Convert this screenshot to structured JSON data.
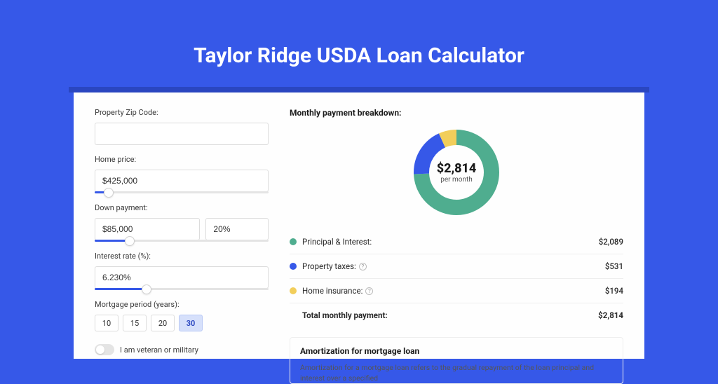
{
  "title": "Taylor Ridge USDA Loan Calculator",
  "colors": {
    "page_bg": "#3658e8",
    "card_bg": "#fefefe",
    "shadow_bar": "#2a46c0",
    "principal": "#4fad8f",
    "taxes": "#3658e8",
    "insurance": "#f2ce5b"
  },
  "form": {
    "zip": {
      "label": "Property Zip Code:",
      "value": ""
    },
    "home_price": {
      "label": "Home price:",
      "value": "$425,000",
      "slider_pct": 8
    },
    "down_payment": {
      "label": "Down payment:",
      "amount": "$85,000",
      "percent": "20%",
      "slider_pct": 20
    },
    "interest_rate": {
      "label": "Interest rate (%):",
      "value": "6.230%",
      "slider_pct": 30
    },
    "mortgage_period": {
      "label": "Mortgage period (years):",
      "options": [
        "10",
        "15",
        "20",
        "30"
      ],
      "selected": "30"
    },
    "veteran": {
      "label": "I am veteran or military",
      "on": false
    }
  },
  "breakdown": {
    "title": "Monthly payment breakdown:",
    "donut": {
      "amount": "$2,814",
      "sub": "per month",
      "segments": [
        {
          "key": "principal",
          "pct": 74.2
        },
        {
          "key": "taxes",
          "pct": 18.9
        },
        {
          "key": "insurance",
          "pct": 6.9
        }
      ],
      "stroke_width": 22
    },
    "rows": [
      {
        "dot": "principal",
        "label": "Principal & Interest:",
        "info": false,
        "value": "$2,089"
      },
      {
        "dot": "taxes",
        "label": "Property taxes:",
        "info": true,
        "value": "$531"
      },
      {
        "dot": "insurance",
        "label": "Home insurance:",
        "info": true,
        "value": "$194"
      }
    ],
    "total": {
      "label": "Total monthly payment:",
      "value": "$2,814"
    }
  },
  "amortization": {
    "title": "Amortization for mortgage loan",
    "text": "Amortization for a mortgage loan refers to the gradual repayment of the loan principal and interest over a specified"
  }
}
